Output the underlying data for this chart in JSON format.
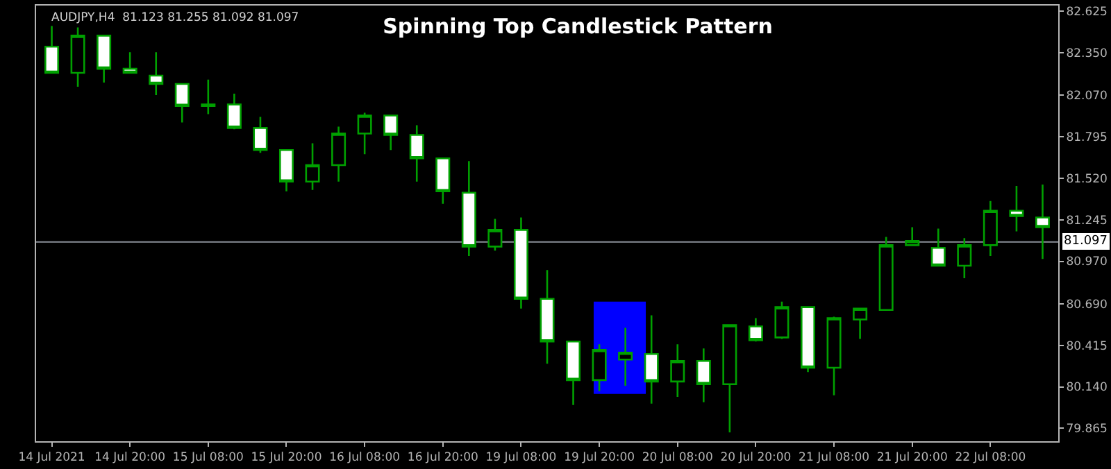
{
  "chart_data": {
    "type": "candlestick",
    "title": "Spinning Top Candlestick Pattern",
    "annotations": [
      "AUDJPY,H4  81.123 81.255 81.092 81.097"
    ],
    "categories": [
      "14 Jul 2021",
      null,
      null,
      "14 Jul 20:00",
      null,
      null,
      "15 Jul 08:00",
      null,
      null,
      "15 Jul 20:00",
      null,
      null,
      "16 Jul 08:00",
      null,
      null,
      "16 Jul 20:00",
      null,
      null,
      "19 Jul 08:00",
      null,
      null,
      "19 Jul 20:00",
      null,
      null,
      "20 Jul 08:00",
      null,
      null,
      "20 Jul 20:00",
      null,
      null,
      "21 Jul 08:00",
      null,
      null,
      "21 Jul 20:00",
      null,
      null,
      "22 Jul 08:00",
      null,
      null
    ],
    "series": [
      {
        "type": "candlestick",
        "color": "#00a000",
        "ohlc": [
          [
            82.388,
            82.525,
            82.215,
            82.215
          ],
          [
            82.215,
            82.516,
            82.124,
            82.461
          ],
          [
            82.461,
            82.461,
            82.151,
            82.242
          ],
          [
            82.242,
            82.352,
            82.215,
            82.215
          ],
          [
            82.197,
            82.352,
            82.069,
            82.142
          ],
          [
            82.142,
            82.142,
            81.887,
            81.996
          ],
          [
            81.996,
            82.17,
            81.942,
            82.006
          ],
          [
            82.006,
            82.078,
            81.842,
            81.851
          ],
          [
            81.851,
            81.924,
            81.687,
            81.705
          ],
          [
            81.705,
            81.705,
            81.432,
            81.496
          ],
          [
            81.496,
            81.75,
            81.441,
            81.605
          ],
          [
            81.605,
            81.86,
            81.496,
            81.814
          ],
          [
            81.814,
            81.951,
            81.678,
            81.933
          ],
          [
            81.933,
            81.933,
            81.705,
            81.805
          ],
          [
            81.805,
            81.869,
            81.496,
            81.65
          ],
          [
            81.65,
            81.65,
            81.35,
            81.432
          ],
          [
            81.423,
            81.632,
            81.004,
            81.067
          ],
          [
            81.067,
            81.25,
            81.04,
            81.177
          ],
          [
            81.177,
            81.259,
            80.657,
            80.721
          ],
          [
            80.721,
            80.912,
            80.293,
            80.439
          ],
          [
            80.439,
            80.439,
            80.02,
            80.184
          ],
          [
            80.184,
            80.421,
            80.111,
            80.384
          ],
          [
            80.32,
            80.53,
            80.147,
            80.366
          ],
          [
            80.357,
            80.612,
            80.029,
            80.175
          ],
          [
            80.175,
            80.421,
            80.074,
            80.311
          ],
          [
            80.311,
            80.393,
            80.038,
            80.157
          ],
          [
            80.157,
            80.548,
            79.838,
            80.548
          ],
          [
            80.539,
            80.594,
            80.439,
            80.448
          ],
          [
            80.466,
            80.703,
            80.457,
            80.667
          ],
          [
            80.667,
            80.667,
            80.238,
            80.266
          ],
          [
            80.266,
            80.603,
            80.084,
            80.594
          ],
          [
            80.585,
            80.657,
            80.457,
            80.657
          ],
          [
            80.648,
            81.131,
            80.648,
            81.076
          ],
          [
            81.076,
            81.195,
            81.076,
            81.104
          ],
          [
            81.058,
            81.186,
            80.94,
            80.94
          ],
          [
            80.94,
            81.122,
            80.858,
            81.076
          ],
          [
            81.076,
            81.368,
            81.004,
            81.304
          ],
          [
            81.304,
            81.468,
            81.167,
            81.268
          ],
          [
            81.259,
            81.477,
            80.985,
            81.195
          ]
        ]
      }
    ],
    "ylim": [
      79.78,
      82.66
    ],
    "yticks": [
      82.625,
      {
        "value": 82.35,
        "label": "82.350"
      },
      {
        "value": 82.07,
        "label": "82.070"
      },
      81.795,
      {
        "value": 81.52,
        "label": "81.520"
      },
      81.245,
      {
        "value": 80.97,
        "label": "80.970"
      },
      {
        "value": 80.69,
        "label": "80.690"
      },
      80.415,
      {
        "value": 80.14,
        "label": "80.140"
      },
      79.865
    ],
    "bands": [
      {
        "axis": "y",
        "from": 80.093,
        "to": 80.703,
        "color": "#0000ff"
      }
    ],
    "ref_lines": [
      {
        "axis": "y",
        "value": 81.097,
        "label": "81.097",
        "color": "#8a8f99"
      }
    ],
    "grid": false,
    "legend": false
  }
}
